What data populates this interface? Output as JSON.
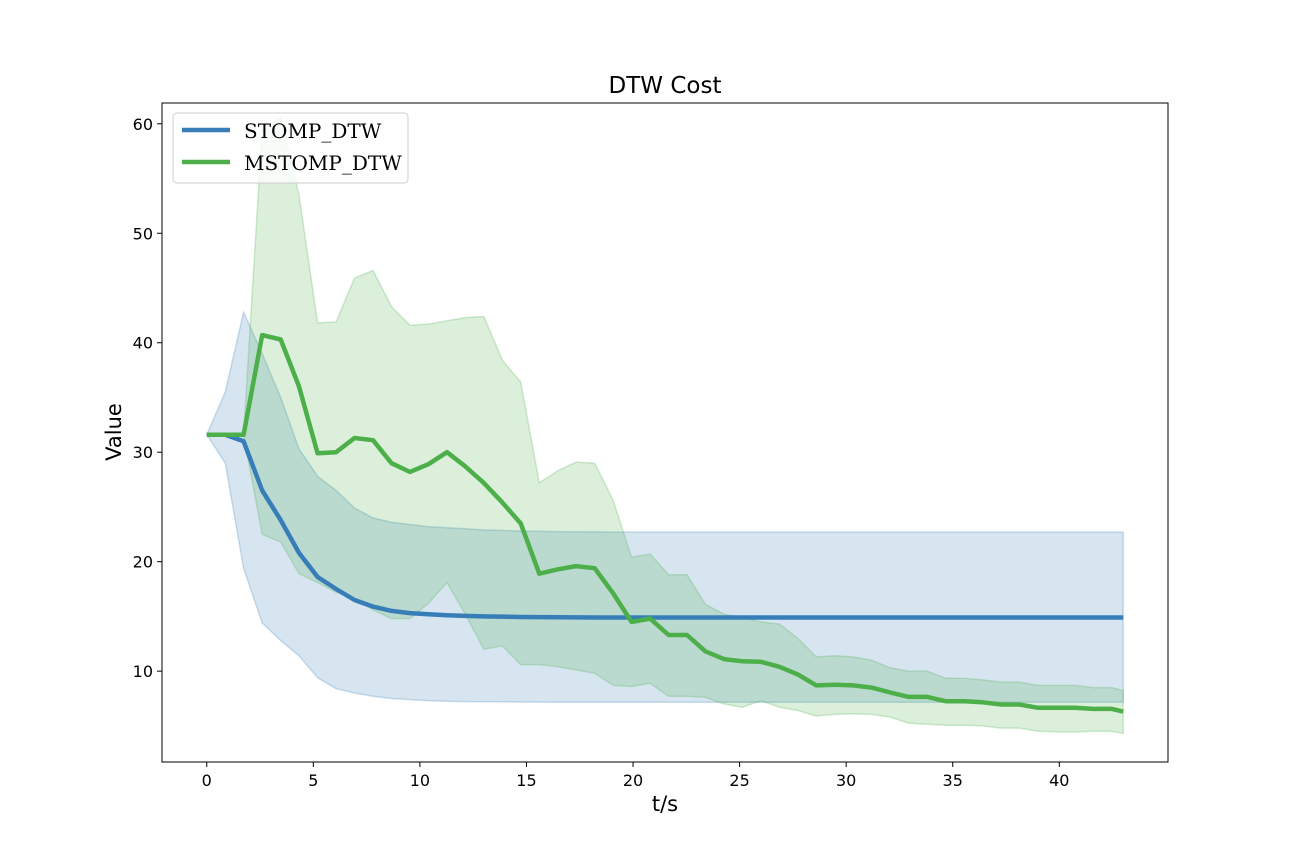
{
  "chart_data": {
    "type": "line",
    "title": "DTW Cost",
    "xlabel": "t/s",
    "ylabel": "Value",
    "xlim": [
      -2.1,
      45.1
    ],
    "ylim": [
      1.7,
      61.9
    ],
    "xticks": [
      0,
      5,
      10,
      15,
      20,
      25,
      30,
      35,
      40
    ],
    "yticks": [
      10,
      20,
      30,
      40,
      50,
      60
    ],
    "legend_position": "top-left",
    "series": [
      {
        "name": "STOMP_DTW",
        "color": "#377eb8",
        "x": [
          0,
          0.87,
          1.73,
          2.6,
          3.47,
          4.33,
          5.2,
          6.07,
          6.93,
          7.8,
          8.67,
          9.53,
          10.4,
          11.27,
          12.13,
          13,
          14.73,
          16.47,
          18.2,
          19.93,
          21.67,
          25.13,
          30.33,
          35.53,
          43
        ],
        "mean": [
          31.6,
          31.6,
          31.0,
          26.5,
          23.8,
          20.8,
          18.6,
          17.5,
          16.5,
          15.9,
          15.5,
          15.3,
          15.2,
          15.1,
          15.05,
          15.0,
          14.95,
          14.92,
          14.9,
          14.9,
          14.9,
          14.9,
          14.9,
          14.9,
          14.9
        ],
        "upper": [
          31.6,
          35.5,
          42.8,
          39.0,
          35.0,
          30.3,
          27.8,
          26.5,
          24.9,
          24.0,
          23.6,
          23.4,
          23.2,
          23.1,
          23.0,
          22.9,
          22.8,
          22.75,
          22.72,
          22.7,
          22.7,
          22.7,
          22.7,
          22.7,
          22.7
        ],
        "lower": [
          31.6,
          29.0,
          19.4,
          14.4,
          12.8,
          11.4,
          9.4,
          8.4,
          8.0,
          7.7,
          7.5,
          7.4,
          7.3,
          7.25,
          7.22,
          7.2,
          7.18,
          7.16,
          7.15,
          7.15,
          7.15,
          7.15,
          7.15,
          7.15,
          7.15
        ]
      },
      {
        "name": "MSTOMP_DTW",
        "color": "#4daf4a",
        "x": [
          0,
          0.87,
          1.73,
          2.6,
          3.47,
          4.33,
          5.2,
          6.07,
          6.93,
          7.8,
          8.67,
          9.53,
          10.4,
          11.27,
          12.13,
          13,
          13.87,
          14.73,
          15.6,
          16.47,
          17.33,
          18.2,
          19.07,
          19.93,
          20.8,
          21.67,
          22.53,
          23.4,
          24.27,
          25.13,
          26,
          26.87,
          27.73,
          28.6,
          29.47,
          30.33,
          31.2,
          32.07,
          32.93,
          33.8,
          34.67,
          35.53,
          36.4,
          37.27,
          38.13,
          39,
          39.87,
          40.73,
          41.6,
          42.47,
          43
        ],
        "mean": [
          31.6,
          31.6,
          31.6,
          40.7,
          40.3,
          36.0,
          29.9,
          30.0,
          31.3,
          31.1,
          29.0,
          28.2,
          28.9,
          30.0,
          28.7,
          27.2,
          25.4,
          23.5,
          18.9,
          19.3,
          19.6,
          19.4,
          17.1,
          14.5,
          14.8,
          13.3,
          13.3,
          11.8,
          11.1,
          10.9,
          10.85,
          10.4,
          9.7,
          8.7,
          8.75,
          8.7,
          8.5,
          8.05,
          7.65,
          7.65,
          7.25,
          7.25,
          7.15,
          6.95,
          6.95,
          6.65,
          6.65,
          6.65,
          6.55,
          6.55,
          6.3
        ],
        "upper": [
          31.6,
          31.6,
          31.6,
          59.5,
          60.6,
          53.5,
          41.8,
          41.9,
          45.9,
          46.6,
          43.3,
          41.6,
          41.7,
          42.0,
          42.3,
          42.4,
          38.4,
          36.4,
          27.2,
          28.3,
          29.1,
          29.0,
          25.6,
          20.4,
          20.7,
          18.8,
          18.8,
          16.1,
          15.2,
          14.9,
          14.5,
          14.3,
          13.0,
          11.3,
          11.4,
          11.3,
          11.0,
          10.3,
          10.0,
          10.0,
          9.35,
          9.35,
          9.2,
          9.0,
          9.0,
          8.7,
          8.7,
          8.7,
          8.5,
          8.5,
          8.2
        ],
        "lower": [
          31.6,
          31.6,
          31.6,
          22.5,
          21.8,
          18.9,
          18.1,
          17.2,
          16.6,
          15.6,
          14.8,
          14.8,
          16.2,
          18.1,
          15.2,
          12.0,
          12.3,
          10.6,
          10.6,
          10.4,
          10.1,
          9.8,
          8.7,
          8.6,
          8.9,
          7.7,
          7.7,
          7.6,
          7.0,
          6.7,
          7.3,
          6.7,
          6.4,
          5.9,
          6.05,
          6.1,
          6.05,
          5.8,
          5.25,
          5.15,
          5.05,
          5.05,
          5.0,
          4.8,
          4.8,
          4.5,
          4.45,
          4.45,
          4.5,
          4.5,
          4.3
        ]
      }
    ]
  }
}
